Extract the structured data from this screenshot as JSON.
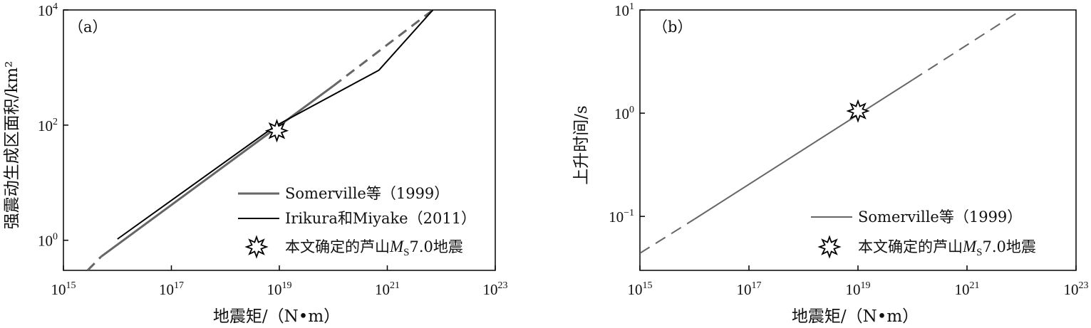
{
  "colors": {
    "somerville": "#666666",
    "irikura": "#000000",
    "axis": "#000000"
  },
  "chart_data": [
    {
      "type": "line",
      "panel_label": "（a）",
      "xlabel": "地震矩/（N•m）",
      "ylabel": "强震动生成区面积/km²",
      "x_scale": "log",
      "y_scale": "log",
      "xlim": [
        1000000000000000.0,
        1e+23
      ],
      "ylim": [
        0.3,
        10000
      ],
      "x_ticks": [
        {
          "value": 1000000000000000.0,
          "base": "10",
          "exp": "15"
        },
        {
          "value": 1e+17,
          "base": "10",
          "exp": "17"
        },
        {
          "value": 1e+19,
          "base": "10",
          "exp": "19"
        },
        {
          "value": 1e+21,
          "base": "10",
          "exp": "21"
        },
        {
          "value": 1e+23,
          "base": "10",
          "exp": "23"
        }
      ],
      "y_ticks": [
        {
          "value": 1,
          "base": "10",
          "exp": "0"
        },
        {
          "value": 100,
          "base": "10",
          "exp": "2"
        },
        {
          "value": 10000,
          "base": "10",
          "exp": "4"
        }
      ],
      "grid": false,
      "legend_position": "bottom-right",
      "series": [
        {
          "name": "Somerville等（1999）",
          "color": "#666666",
          "width": 3,
          "segments": [
            {
              "style": "dashed",
              "x": [
                2800000000000000.0,
                5000000000000000.0
              ],
              "y": [
                0.3,
                0.52
              ]
            },
            {
              "style": "solid",
              "x": [
                5000000000000000.0,
                1e+20
              ],
              "y": [
                0.52,
                480
              ]
            },
            {
              "style": "dashed",
              "x": [
                1e+20,
                7e+21
              ],
              "y": [
                480,
                10000
              ]
            }
          ]
        },
        {
          "name": "Irikura和Miyake（2011）",
          "color": "#000000",
          "width": 2,
          "segments": [
            {
              "style": "solid",
              "x": [
                1e+16,
                8.2e+18,
                7e+20,
                7e+21
              ],
              "y": [
                1.05,
                95,
                900,
                10000
              ]
            }
          ]
        }
      ],
      "markers": [
        {
          "name": "本文确定的芦山MS7.0地震",
          "x": 9e+18,
          "y": 80,
          "shape": "star"
        }
      ],
      "legend": [
        {
          "label": "Somerville等（1999）",
          "kind": "line",
          "color": "#666666",
          "width": 3
        },
        {
          "label": "Irikura和Miyake（2011）",
          "kind": "line",
          "color": "#000000",
          "width": 2
        },
        {
          "label_main": "本文确定的芦山",
          "label_m": "M",
          "label_sub": "S",
          "label_rest": "7.0地震",
          "kind": "star"
        }
      ]
    },
    {
      "type": "line",
      "panel_label": "（b）",
      "xlabel": "地震矩/（N•m）",
      "ylabel": "上升时间/s",
      "x_scale": "log",
      "y_scale": "log",
      "xlim": [
        1000000000000000.0,
        1e+23
      ],
      "ylim": [
        0.03,
        10
      ],
      "x_ticks": [
        {
          "value": 1000000000000000.0,
          "base": "10",
          "exp": "15"
        },
        {
          "value": 1e+17,
          "base": "10",
          "exp": "17"
        },
        {
          "value": 1e+19,
          "base": "10",
          "exp": "19"
        },
        {
          "value": 1e+21,
          "base": "10",
          "exp": "21"
        },
        {
          "value": 1e+23,
          "base": "10",
          "exp": "23"
        }
      ],
      "y_ticks": [
        {
          "value": 0.1,
          "base": "10",
          "exp": "−1"
        },
        {
          "value": 1,
          "base": "10",
          "exp": "0"
        },
        {
          "value": 10,
          "base": "10",
          "exp": "1"
        }
      ],
      "grid": false,
      "legend_position": "bottom-right",
      "series": [
        {
          "name": "Somerville等（1999）",
          "color": "#666666",
          "width": 2,
          "segments": [
            {
              "style": "dashed",
              "x": [
                1000000000000000.0,
                1e+16
              ],
              "y": [
                0.044,
                0.094
              ]
            },
            {
              "style": "solid",
              "x": [
                1e+16,
                1e+20
              ],
              "y": [
                0.094,
                2.1
              ]
            },
            {
              "style": "dashed",
              "x": [
                1e+20,
                1e+22
              ],
              "y": [
                2.1,
                10
              ]
            }
          ]
        }
      ],
      "markers": [
        {
          "name": "本文确定的芦山MS7.0地震",
          "x": 1e+19,
          "y": 1.05,
          "shape": "star"
        }
      ],
      "legend": [
        {
          "label": "Somerville等（1999）",
          "kind": "line",
          "color": "#666666",
          "width": 2
        },
        {
          "label_main": "本文确定的芦山",
          "label_m": "M",
          "label_sub": "S",
          "label_rest": "7.0地震",
          "kind": "star"
        }
      ]
    }
  ]
}
